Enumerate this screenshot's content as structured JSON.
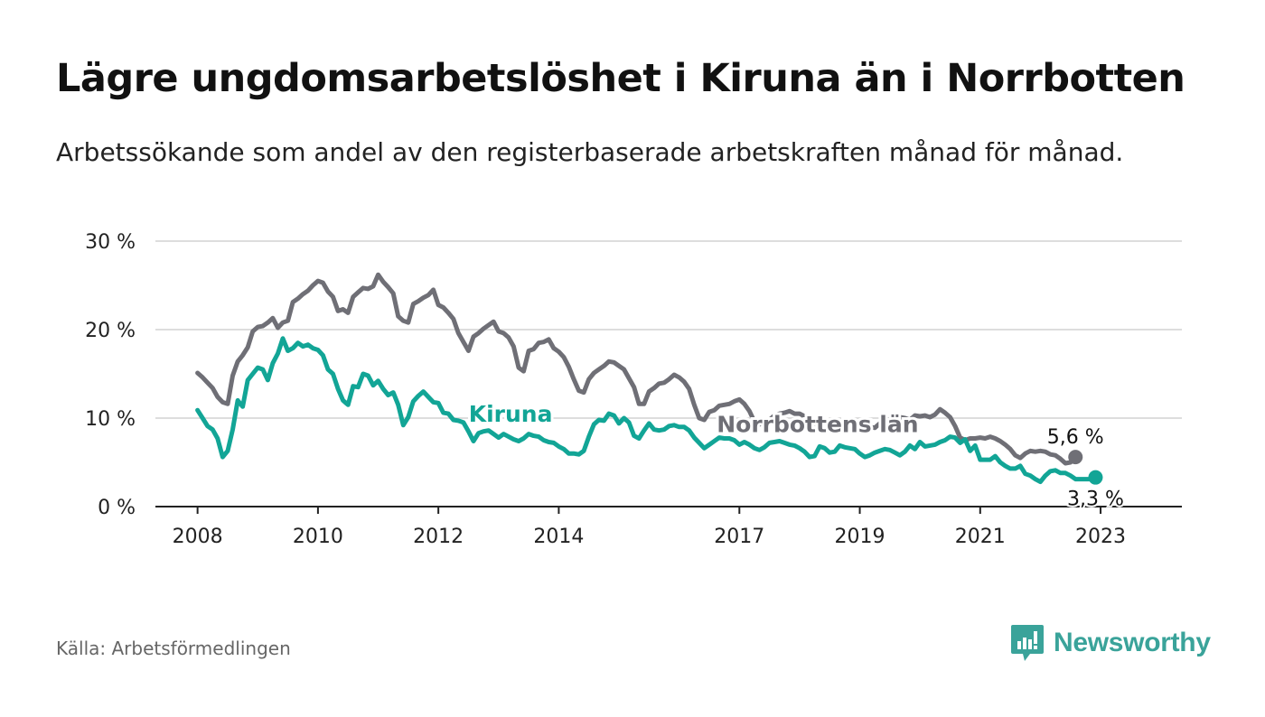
{
  "title": "Lägre ungdomsarbetslöshet i Kiruna än i Norrbotten",
  "subtitle": "Arbetssökande som andel av den registerbaserade arbetskraften månad för månad.",
  "source": "Källa: Arbetsförmedlingen",
  "brand": "Newsworthy",
  "colors": {
    "kiruna": "#12a596",
    "norrbotten": "#6f6f76",
    "grid": "#dddddd",
    "axis": "#222222",
    "brand": "#3aa39a"
  },
  "chart_data": {
    "type": "line",
    "title": "Lägre ungdomsarbetslöshet i Kiruna än i Norrbotten",
    "xlabel": "",
    "ylabel": "",
    "ylim": [
      0,
      30
    ],
    "y_ticks": [
      0,
      10,
      20,
      30
    ],
    "y_tick_labels": [
      "0 %",
      "10 %",
      "20 %",
      "30 %"
    ],
    "x_ticks": [
      2008,
      2010,
      2012,
      2014,
      2017,
      2019,
      2021,
      2023
    ],
    "x_tick_labels": [
      "2008",
      "2010",
      "2012",
      "2014",
      "2017",
      "2019",
      "2021",
      "2023"
    ],
    "x_range": [
      2007.3,
      2024.35
    ],
    "x_start": 2008.0,
    "x_step": 0.08333,
    "series": [
      {
        "name": "Norrbottens län",
        "label": "Norrbottens län",
        "end_label": "5,6 %",
        "values": [
          15.1,
          14.6,
          14.0,
          13.4,
          12.4,
          11.8,
          11.6,
          14.8,
          16.4,
          17.1,
          18.0,
          19.8,
          20.3,
          20.4,
          20.8,
          21.3,
          20.2,
          20.8,
          21.0,
          23.1,
          23.5,
          24.0,
          24.4,
          25.0,
          25.5,
          25.3,
          24.3,
          23.7,
          22.1,
          22.3,
          21.9,
          23.7,
          24.2,
          24.7,
          24.6,
          24.9,
          26.2,
          25.4,
          24.8,
          24.1,
          21.5,
          21.0,
          20.8,
          22.9,
          23.2,
          23.6,
          23.9,
          24.5,
          22.8,
          22.5,
          21.9,
          21.2,
          19.6,
          18.6,
          17.6,
          19.2,
          19.6,
          20.1,
          20.5,
          20.9,
          19.8,
          19.6,
          19.1,
          18.1,
          15.7,
          15.3,
          17.6,
          17.8,
          18.5,
          18.6,
          18.9,
          17.9,
          17.5,
          16.9,
          15.8,
          14.4,
          13.1,
          12.9,
          14.4,
          15.1,
          15.5,
          15.9,
          16.4,
          16.3,
          15.9,
          15.5,
          14.5,
          13.5,
          11.6,
          11.6,
          13.0,
          13.4,
          13.9,
          14.0,
          14.4,
          14.9,
          14.6,
          14.1,
          13.3,
          11.5,
          10.0,
          9.8,
          10.7,
          10.9,
          11.4,
          11.5,
          11.6,
          11.9,
          12.1,
          11.6,
          10.8,
          9.6,
          9.3,
          9.6,
          9.8,
          10.3,
          10.5,
          10.6,
          10.8,
          10.5,
          10.5,
          10.2,
          9.6,
          9.4,
          9.5,
          9.7,
          9.1,
          8.9,
          9.2,
          9.6,
          9.8,
          9.6,
          9.5,
          9.2,
          9.0,
          8.9,
          9.4,
          9.6,
          9.9,
          9.6,
          10.1,
          10.0,
          9.8,
          10.3,
          10.2,
          10.3,
          10.1,
          10.4,
          11.0,
          10.6,
          10.1,
          9.1,
          7.8,
          7.5,
          7.7,
          7.7,
          7.8,
          7.7,
          7.9,
          7.7,
          7.4,
          7.0,
          6.5,
          5.8,
          5.5,
          6.0,
          6.3,
          6.2,
          6.3,
          6.2,
          5.9,
          5.8,
          5.4,
          4.9,
          5.0,
          5.6
        ]
      },
      {
        "name": "Kiruna",
        "label": "Kiruna",
        "end_label": "3,3 %",
        "values": [
          10.9,
          10.0,
          9.1,
          8.7,
          7.7,
          5.6,
          6.3,
          8.7,
          12.0,
          11.3,
          14.3,
          15.0,
          15.7,
          15.5,
          14.3,
          16.2,
          17.3,
          19.0,
          17.6,
          17.9,
          18.5,
          18.1,
          18.3,
          17.9,
          17.7,
          17.1,
          15.5,
          15.0,
          13.3,
          12.0,
          11.5,
          13.6,
          13.5,
          15.0,
          14.8,
          13.7,
          14.2,
          13.3,
          12.6,
          12.9,
          11.5,
          9.2,
          10.1,
          11.9,
          12.5,
          13.0,
          12.4,
          11.8,
          11.7,
          10.6,
          10.5,
          9.8,
          9.7,
          9.5,
          8.5,
          7.4,
          8.3,
          8.5,
          8.6,
          8.2,
          7.8,
          8.2,
          7.9,
          7.6,
          7.4,
          7.7,
          8.2,
          8.0,
          7.9,
          7.5,
          7.3,
          7.2,
          6.8,
          6.5,
          6.0,
          6.0,
          5.9,
          6.3,
          7.9,
          9.3,
          9.8,
          9.7,
          10.5,
          10.3,
          9.4,
          10.0,
          9.5,
          8.0,
          7.7,
          8.6,
          9.4,
          8.7,
          8.6,
          8.7,
          9.1,
          9.2,
          9.0,
          9.0,
          8.6,
          7.8,
          7.2,
          6.6,
          7.0,
          7.4,
          7.8,
          7.7,
          7.7,
          7.5,
          7.0,
          7.3,
          7.0,
          6.6,
          6.4,
          6.7,
          7.2,
          7.3,
          7.4,
          7.2,
          7.0,
          6.9,
          6.6,
          6.2,
          5.6,
          5.7,
          6.8,
          6.6,
          6.1,
          6.2,
          6.9,
          6.7,
          6.6,
          6.5,
          6.0,
          5.6,
          5.8,
          6.1,
          6.3,
          6.5,
          6.4,
          6.1,
          5.8,
          6.2,
          6.9,
          6.5,
          7.3,
          6.8,
          6.9,
          7.0,
          7.3,
          7.5,
          7.9,
          7.8,
          7.2,
          7.6,
          6.3,
          6.9,
          5.3,
          5.3,
          5.3,
          5.7,
          5.0,
          4.6,
          4.3,
          4.3,
          4.6,
          3.7,
          3.5,
          3.1,
          2.8,
          3.5,
          4.0,
          4.1,
          3.8,
          3.8,
          3.5,
          3.1,
          3.1,
          3.1,
          3.1,
          3.3
        ]
      }
    ],
    "annotations": [
      {
        "text": "Kiruna",
        "series": "Kiruna",
        "x": 2013.2,
        "y": 9.6
      },
      {
        "text": "Norrbottens län",
        "series": "Norrbottens län",
        "x": 2018.3,
        "y": 8.4
      }
    ]
  }
}
